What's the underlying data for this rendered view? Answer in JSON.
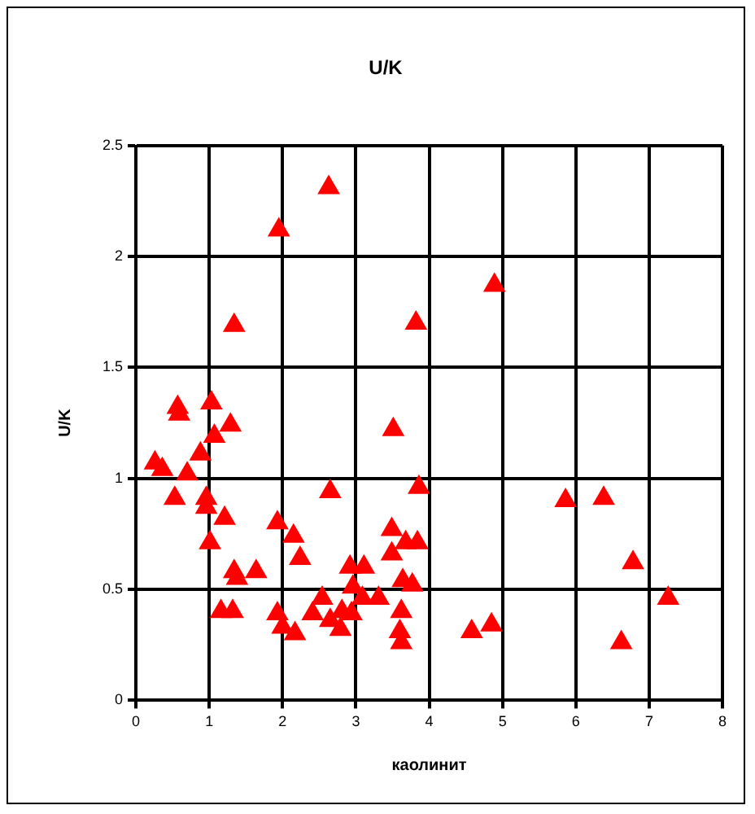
{
  "chart_data": {
    "type": "scatter",
    "title": "U/K",
    "xlabel": "каолинит",
    "ylabel": "U/K",
    "marker": "triangle",
    "grid": true,
    "xlim": [
      0,
      8
    ],
    "xticks": [
      0,
      1,
      2,
      3,
      4,
      5,
      6,
      7,
      8
    ],
    "ylim": [
      0,
      2.5
    ],
    "yticks": [
      0,
      0.5,
      1,
      1.5,
      2,
      2.5
    ],
    "series": [
      {
        "color": "#ff0000",
        "x": [
          2.63,
          1.95,
          1.34,
          3.82,
          4.89,
          3.51,
          0.57,
          0.59,
          1.03,
          1.29,
          1.07,
          0.26,
          0.36,
          0.88,
          0.7,
          0.53,
          0.96,
          0.96,
          1.21,
          1.01,
          2.65,
          3.86,
          1.93,
          2.15,
          2.24,
          1.34,
          1.38,
          1.64,
          1.16,
          1.32,
          1.93,
          2.0,
          2.17,
          2.41,
          2.54,
          2.65,
          2.79,
          2.81,
          2.94,
          2.92,
          2.96,
          3.11,
          3.09,
          3.31,
          3.49,
          3.49,
          3.68,
          3.84,
          3.64,
          3.77,
          3.62,
          3.6,
          3.62,
          5.86,
          6.38,
          6.78,
          7.26,
          4.58,
          4.85,
          6.62
        ],
        "values": [
          2.31,
          2.12,
          1.69,
          1.7,
          1.87,
          1.22,
          1.32,
          1.29,
          1.34,
          1.24,
          1.19,
          1.07,
          1.04,
          1.11,
          1.02,
          0.91,
          0.91,
          0.87,
          0.82,
          0.71,
          0.94,
          0.96,
          0.8,
          0.74,
          0.64,
          0.58,
          0.55,
          0.58,
          0.4,
          0.4,
          0.39,
          0.33,
          0.3,
          0.39,
          0.46,
          0.36,
          0.32,
          0.4,
          0.39,
          0.6,
          0.51,
          0.6,
          0.46,
          0.46,
          0.77,
          0.66,
          0.71,
          0.71,
          0.54,
          0.52,
          0.4,
          0.31,
          0.26,
          0.9,
          0.91,
          0.62,
          0.46,
          0.31,
          0.34,
          0.26
        ]
      }
    ]
  }
}
